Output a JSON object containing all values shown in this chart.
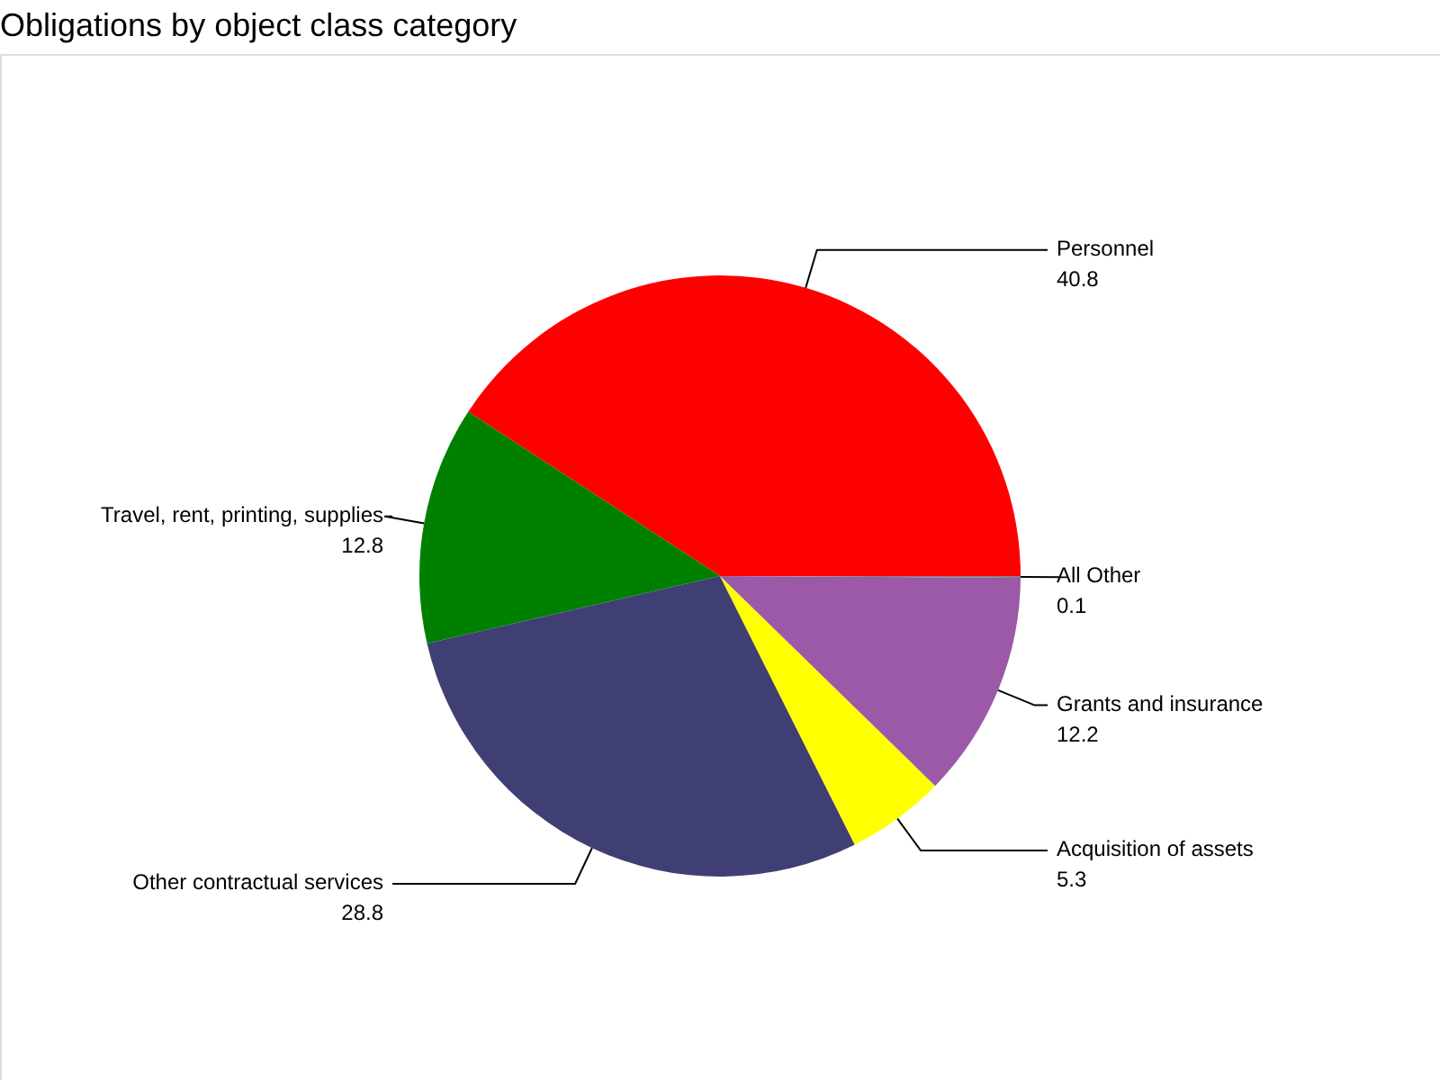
{
  "chart_data": {
    "type": "pie",
    "title": "Obligations by object class category",
    "categories": [
      "Personnel",
      "Travel, rent, printing, supplies",
      "Other contractual services",
      "Acquisition of assets",
      "Grants and insurance",
      "All Other"
    ],
    "values": [
      40.8,
      12.8,
      28.8,
      5.3,
      12.2,
      0.1
    ],
    "colors": [
      "#ff0000",
      "#008000",
      "#3f3f74",
      "#ffff00",
      "#9b59a8",
      "#808080"
    ],
    "data_labels": true
  }
}
